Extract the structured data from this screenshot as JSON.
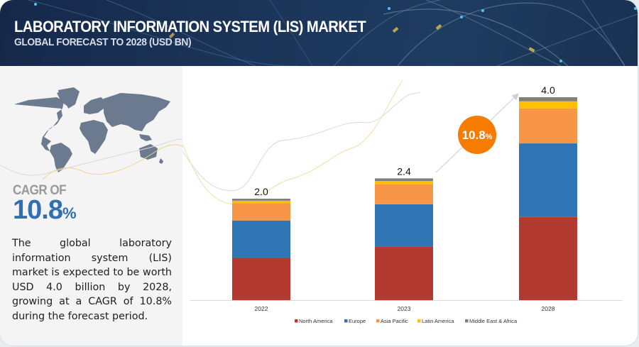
{
  "header": {
    "title": "LABORATORY INFORMATION SYSTEM (LIS) MARKET",
    "subtitle": "GLOBAL FORECAST TO 2028 (USD BN)"
  },
  "left_panel": {
    "cagr_label": "CAGR OF",
    "cagr_value": "10.8",
    "cagr_unit": "%",
    "description": "The global laboratory information system (LIS) market is expected to be worth USD 4.0 billion by 2028, growing at a CAGR of 10.8% during the forecast period.",
    "map_icon": "world-map-icon"
  },
  "colors": {
    "North America": "#b33a31",
    "Europe": "#2f75b5",
    "Asia Pacific": "#f79646",
    "Latin America": "#ffc000",
    "Middle East & Africa": "#7f7f7f",
    "cagr_bubble": "#f57c00",
    "header_bg": "#1b3559",
    "accent_blue": "#2f6fb2"
  },
  "chart_data": {
    "type": "bar",
    "stacked": true,
    "title": "Laboratory Information System (LIS) Market",
    "subtitle": "Global Forecast to 2028 (USD BN)",
    "xlabel": "",
    "ylabel": "",
    "ylim": [
      0,
      4.0
    ],
    "grid": false,
    "legend_position": "bottom",
    "categories": [
      "2022",
      "2023",
      "2028"
    ],
    "totals": [
      "2.0",
      "2.4",
      "4.0"
    ],
    "series": [
      {
        "name": "North America",
        "values": [
          0.84,
          1.05,
          1.64
        ]
      },
      {
        "name": "Europe",
        "values": [
          0.73,
          0.84,
          1.45
        ]
      },
      {
        "name": "Asia Pacific",
        "values": [
          0.34,
          0.39,
          0.69
        ]
      },
      {
        "name": "Latin America",
        "values": [
          0.05,
          0.07,
          0.14
        ]
      },
      {
        "name": "Middle East & Africa",
        "values": [
          0.04,
          0.05,
          0.08
        ]
      }
    ],
    "annotations": [
      {
        "text": "10.8",
        "suffix": "%",
        "type": "cagr-bubble"
      }
    ]
  }
}
